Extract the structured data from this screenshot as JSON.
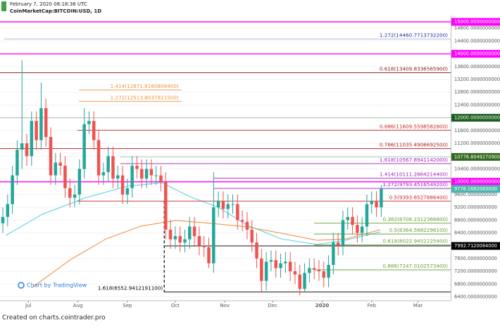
{
  "header": {
    "timestamp": "February 7, 2020 08:18:38 UTC",
    "symbol": "CoinMarketCap:BITCOIN:USD, 1D"
  },
  "footer": "Created on charts.cointrader.pro",
  "watermark": "Chart by TradingView",
  "chart_data": {
    "type": "candlestick",
    "up_color": "#26a69a",
    "down_color": "#ef5350",
    "open": [
      8700,
      8900,
      9300,
      10200,
      11000,
      11200,
      10800,
      11900,
      11300,
      12300,
      11400,
      10200,
      10600,
      10500,
      9800,
      9500,
      9600,
      10400,
      11800,
      11900,
      11300,
      10200,
      10300,
      10800,
      10100,
      10200,
      9600,
      9800,
      10500,
      10400,
      10100,
      10400,
      10200,
      10200,
      10000,
      8500,
      8200,
      8300,
      8100,
      8200,
      8600,
      8300,
      8000,
      7950,
      7450,
      9200,
      9400,
      9150,
      9300,
      9300,
      8800,
      8750,
      8500,
      8100,
      7600,
      6900,
      7500,
      7550,
      7300,
      7450,
      7500,
      7200,
      7100,
      6650,
      7150,
      7300,
      7250,
      7200,
      7000,
      7400,
      8100,
      8000,
      8800,
      8900,
      8650,
      8400,
      8600,
      9300,
      9400,
      9200
    ],
    "high": [
      9200,
      9600,
      10500,
      11300,
      13800,
      11500,
      12200,
      12200,
      13100,
      12600,
      11700,
      10900,
      10900,
      10800,
      10100,
      9900,
      10700,
      12300,
      12200,
      12200,
      11600,
      10600,
      11100,
      11100,
      10500,
      10500,
      10100,
      10800,
      10800,
      10700,
      10700,
      10700,
      10500,
      10500,
      10300,
      8800,
      8600,
      8600,
      8500,
      8900,
      8900,
      8600,
      8300,
      8250,
      10300,
      9700,
      9700,
      9600,
      9600,
      9600,
      9100,
      9050,
      8800,
      8400,
      7900,
      7800,
      7850,
      7850,
      7750,
      7800,
      7800,
      7500,
      7400,
      7450,
      7600,
      7600,
      7550,
      7500,
      7700,
      8400,
      8400,
      9100,
      9200,
      9200,
      8950,
      8900,
      9600,
      9700,
      9700,
      9900
    ],
    "low": [
      8400,
      8600,
      9000,
      9900,
      10400,
      10500,
      10500,
      11000,
      11000,
      11100,
      9900,
      9900,
      10200,
      9500,
      9200,
      9200,
      9300,
      10100,
      11500,
      11000,
      9900,
      9900,
      10000,
      9800,
      9800,
      9300,
      9300,
      9500,
      10100,
      9800,
      9800,
      9900,
      9900,
      9700,
      8200,
      7900,
      7900,
      7800,
      7800,
      7900,
      8000,
      7700,
      7650,
      7300,
      7150,
      8900,
      8850,
      8850,
      9000,
      8500,
      8450,
      8200,
      7800,
      7300,
      6550,
      6600,
      7200,
      7000,
      7000,
      7150,
      6900,
      6800,
      6450,
      6550,
      6850,
      6950,
      6900,
      6700,
      6700,
      7100,
      7700,
      7700,
      8500,
      8350,
      8100,
      8100,
      8300,
      9000,
      8900,
      8900
    ],
    "close": [
      8900,
      9300,
      10200,
      11000,
      11200,
      10800,
      11900,
      11300,
      12300,
      11400,
      10200,
      10600,
      10500,
      9800,
      9500,
      9600,
      10400,
      11800,
      11900,
      11300,
      10200,
      10300,
      10800,
      10100,
      10200,
      9600,
      9800,
      10500,
      10400,
      10100,
      10400,
      10200,
      10200,
      10000,
      8500,
      8200,
      8300,
      8100,
      8200,
      8600,
      8300,
      8000,
      7950,
      7450,
      9200,
      9400,
      9150,
      9300,
      9300,
      8800,
      8750,
      8500,
      8100,
      7600,
      6900,
      7500,
      7550,
      7300,
      7450,
      7500,
      7200,
      7100,
      6650,
      7150,
      7300,
      7250,
      7200,
      7000,
      7400,
      8100,
      8000,
      8800,
      8900,
      8650,
      8400,
      8600,
      9300,
      9400,
      9200,
      9776
    ],
    "xlim": [
      -0.59,
      93.5
    ],
    "xticks": [
      {
        "value": 5.33,
        "label": "Jul"
      },
      {
        "value": 15.67,
        "label": "Aug"
      },
      {
        "value": 26,
        "label": "Sep"
      },
      {
        "value": 36,
        "label": "Oct"
      },
      {
        "value": 46.33,
        "label": "Nov"
      },
      {
        "value": 56.33,
        "label": "Dec"
      },
      {
        "value": 66.67,
        "label": "2020"
      },
      {
        "value": 77,
        "label": "Feb"
      },
      {
        "value": 86.67,
        "label": "Mar"
      }
    ],
    "ylim": [
      6280,
      15200
    ],
    "yticks": [
      {
        "value": 6400,
        "label": "6400.0000000000"
      },
      {
        "value": 6800,
        "label": "6800.0000000000"
      },
      {
        "value": 7200,
        "label": "7200.0000000000"
      },
      {
        "value": 7600,
        "label": "7600.0000000000"
      },
      {
        "value": 8000,
        "label": "8000.0000000000"
      },
      {
        "value": 8400,
        "label": "8400.0000000000"
      },
      {
        "value": 8800,
        "label": "8800.0000000000"
      },
      {
        "value": 9200,
        "label": "9200.0000000000"
      },
      {
        "value": 9600,
        "label": "9600.0000000000"
      },
      {
        "value": 10000,
        "label": "10000.0000000000"
      },
      {
        "value": 10400,
        "label": "10400.0000000000"
      },
      {
        "value": 10800,
        "label": "10800.0000000000"
      },
      {
        "value": 11200,
        "label": "11200.0000000000"
      },
      {
        "value": 11600,
        "label": "11600.0000000000"
      },
      {
        "value": 12000,
        "label": "12000.0000000000"
      },
      {
        "value": 12400,
        "label": "12400.0000000000"
      },
      {
        "value": 12800,
        "label": "12800.0000000000"
      },
      {
        "value": 13200,
        "label": "13200.0000000000"
      },
      {
        "value": 13600,
        "label": "13600.0000000000"
      },
      {
        "value": 14000,
        "label": "14000.0000000000"
      },
      {
        "value": 14400,
        "label": "14400.0000000000"
      },
      {
        "value": 14800,
        "label": "14800.0000000000"
      }
    ],
    "levels": [
      {
        "value": 15000,
        "badge": "15000.0000000000",
        "color": "#ff00ff",
        "x_start": -0.59
      },
      {
        "value": 14460.77137322,
        "label": "1.272(14460.7713732200)",
        "color": "#2a2aa0",
        "x_start": 0.3
      },
      {
        "value": 14000,
        "badge": "14000.0000000000",
        "color": "#ff00ff",
        "x_start": -0.59
      },
      {
        "value": 13409.83365659,
        "label": "0.618(13409.8336565900)",
        "color": "#8b1a1a",
        "x_start": -0.59
      },
      {
        "value": 12871.81608084,
        "label": "1.414(12871.8160808400)",
        "color": "#e8953f",
        "x_start": 15.9,
        "x_end": 37.3
      },
      {
        "value": 12513.80378215,
        "label": "1.272(12513.8037821500)",
        "color": "#e8953f",
        "x_start": 15.9,
        "x_end": 37.3
      },
      {
        "value": 12000,
        "badge": "12000.0000000000",
        "color": "#1b5e20",
        "x_start": -0.59
      },
      {
        "value": 11609.55985828,
        "label": "0.886(11609.5598582800)",
        "color": "#c62828",
        "x_start": 15.6
      },
      {
        "value": 11035.49066925,
        "label": "0.786(11035.4906692500)",
        "color": "#b71c1c",
        "x_start": -0.59
      },
      {
        "value": 10776.80492709,
        "badge": "10776.8049270900",
        "color": "#33691e",
        "x_start": 24.5
      },
      {
        "value": 10567.8941142,
        "label": "1.618(10567.8941142000)",
        "color": "#a020c0",
        "x_start": 24.5
      },
      {
        "value": 10111.28642144,
        "label": "1.414(10111.2864214400)",
        "color": "#a020c0",
        "x_start": 44
      },
      {
        "value": 10000,
        "badge": "10000.0000000000",
        "color": "#ff00ff",
        "x_start": -0.59
      },
      {
        "value": 9793.45165492,
        "label": "1.272(9793.4516549200)",
        "color": "#a020c0",
        "x_start": 44
      },
      {
        "value": 9776.1682083,
        "badge": "9776.1682083000",
        "color": "#4db6ac",
        "x_start": 79
      },
      {
        "value": 9393.65278864,
        "label": "0.5(9393.6527886400)",
        "color": "#c62828",
        "x_start": 15.6
      },
      {
        "value": 8706.23123668,
        "label": "0.382(8706.2312366800)",
        "color": "#689f38",
        "x_start": 65
      },
      {
        "value": 8364.58822961,
        "label": "0.5(8364.5882296100)",
        "color": "#689f38",
        "x_start": 65
      },
      {
        "value": 8022.94522254,
        "label": "0.618(8022.9452225400)",
        "color": "#689f38",
        "x_start": 65
      },
      {
        "value": 7992.7120084,
        "badge": "7992.7120084000",
        "color": "#000000",
        "x_start": 33.7
      },
      {
        "value": 7247.01025734,
        "label": "0.886(7247.0102573400)",
        "color": "#689f38",
        "x_start": 65
      },
      {
        "value": 6552.94121911,
        "label": "1.618(6552.9412191100)",
        "color": "#000000",
        "x_start": 33.7,
        "label_at": "start"
      }
    ],
    "vline": {
      "x": 33.7,
      "from": 6552.94121911,
      "to": 9393.65278864,
      "color": "#000000"
    },
    "overlays": [
      {
        "color": "#4dd0e1",
        "x": [
          0.6,
          8.2,
          17.1,
          25.9,
          33.2,
          39.1,
          45,
          50.9,
          58.2,
          65.6,
          71.5,
          78.8
        ],
        "values": [
          8320,
          8980,
          9490,
          9860,
          9970,
          9530,
          9200,
          8650,
          8210,
          8040,
          8170,
          8430
        ]
      },
      {
        "color": "#f0883a",
        "x": [
          6,
          14.1,
          21.5,
          28.8,
          36.2,
          43.5,
          50.9,
          58.2,
          65.6,
          71.5,
          78.8
        ],
        "values": [
          6680,
          7560,
          8210,
          8610,
          8790,
          8700,
          8590,
          8390,
          8170,
          8210,
          8500
        ]
      }
    ]
  }
}
